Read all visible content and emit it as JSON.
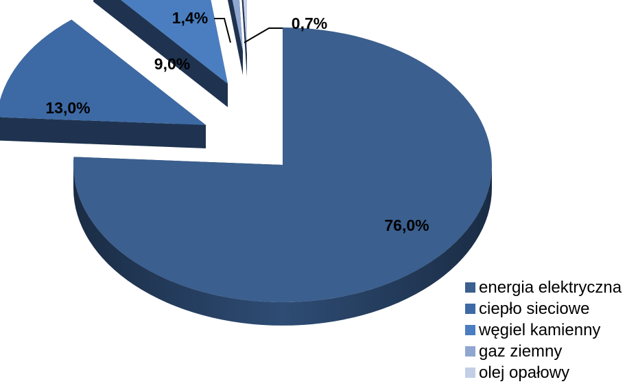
{
  "chart_data": {
    "type": "pie",
    "style": "3d-exploded",
    "title": "",
    "categories": [
      "energia elektryczna",
      "ciepło sieciowe",
      "węgiel kamienny",
      "gaz ziemny",
      "olej opałowy"
    ],
    "values": [
      76.0,
      13.0,
      9.0,
      1.4,
      0.7
    ],
    "value_labels": [
      "76,0%",
      "13,0%",
      "9,0%",
      "1,4%",
      "0,7%"
    ],
    "colors": [
      "#3b5f8e",
      "#3d6aa5",
      "#4a7ec0",
      "#8fa7d0",
      "#c3cfe6"
    ],
    "legend_position": "right-bottom"
  }
}
